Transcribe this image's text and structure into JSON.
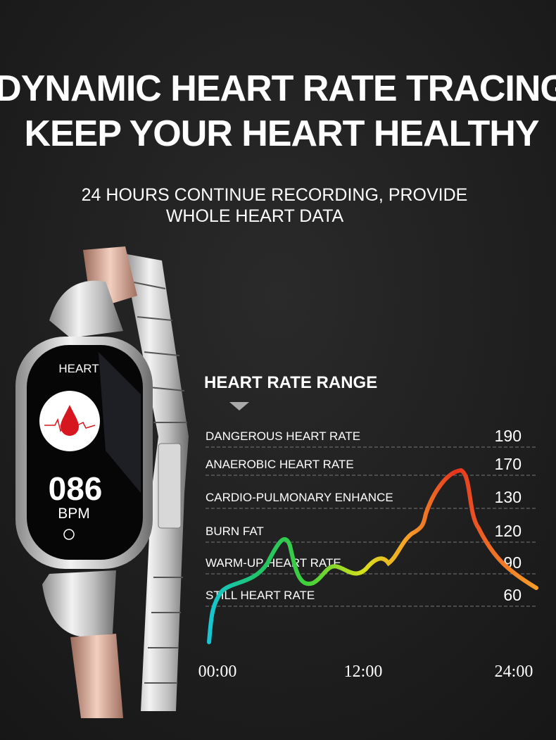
{
  "header": {
    "title_lines": [
      "DYNAMIC HEART RATE TRACING",
      "KEEP YOUR HEART HEALTHY"
    ],
    "subtitle_lines": [
      "24 HOURS CONTINUE RECORDING, PROVIDE",
      "WHOLE HEART DATA"
    ]
  },
  "watch": {
    "label": "HEART",
    "reading": "086",
    "unit": "BPM"
  },
  "range": {
    "title": "HEART RATE RANGE",
    "zones": [
      {
        "name": "DANGEROUS HEART RATE",
        "value": 190
      },
      {
        "name": "ANAEROBIC HEART RATE",
        "value": 170
      },
      {
        "name": "CARDIO-PULMONARY ENHANCE",
        "value": 130
      },
      {
        "name": "BURN FAT",
        "value": 120
      },
      {
        "name": "WARM-UP HEART RATE",
        "value": 90
      },
      {
        "name": "STILL HEART RATE",
        "value": 60
      }
    ],
    "time_labels": [
      "00:00",
      "12:00",
      "24:00"
    ]
  }
}
